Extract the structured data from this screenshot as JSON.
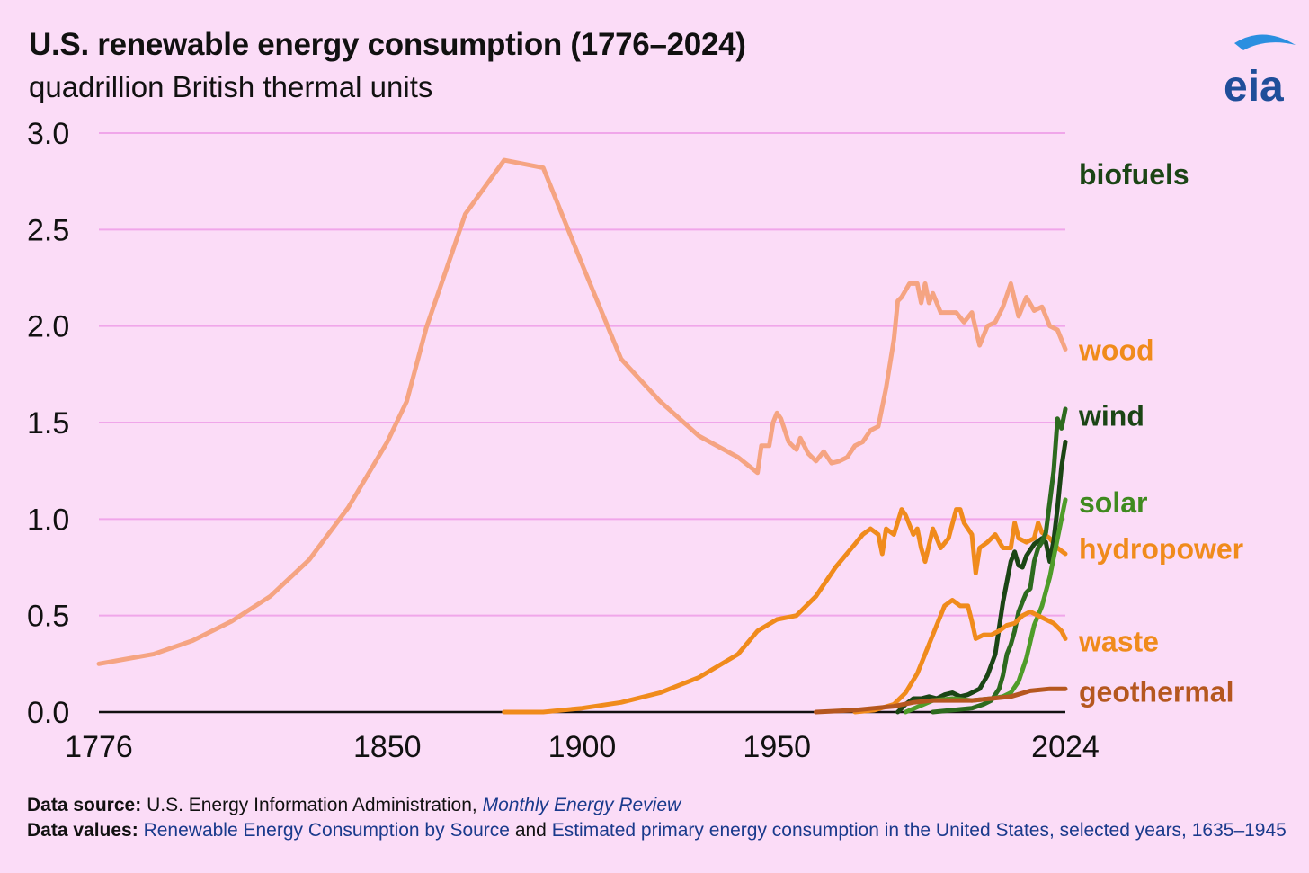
{
  "chart_data": {
    "type": "line",
    "title": "U.S. renewable energy consumption (1776–2024)",
    "subtitle": "quadrillion British thermal units",
    "ylim": [
      0,
      3.0
    ],
    "xlim": [
      1776,
      2024
    ],
    "yticks": [
      "0.0",
      "0.5",
      "1.0",
      "1.5",
      "2.0",
      "2.5",
      "3.0"
    ],
    "xticks": [
      {
        "value": 1776,
        "label": "1776"
      },
      {
        "value": 1850,
        "label": "1850"
      },
      {
        "value": 1900,
        "label": "1900"
      },
      {
        "value": 1950,
        "label": "1950"
      },
      {
        "value": 2024,
        "label": "2024"
      }
    ],
    "grid": "horizontal",
    "series": [
      {
        "name": "wood",
        "color": "#f5a482",
        "label_color": "#f08b1c",
        "points": [
          [
            1776,
            0.25
          ],
          [
            1790,
            0.3
          ],
          [
            1800,
            0.37
          ],
          [
            1810,
            0.47
          ],
          [
            1820,
            0.6
          ],
          [
            1830,
            0.79
          ],
          [
            1840,
            1.06
          ],
          [
            1850,
            1.4
          ],
          [
            1855,
            1.61
          ],
          [
            1860,
            1.99
          ],
          [
            1870,
            2.58
          ],
          [
            1880,
            2.86
          ],
          [
            1890,
            2.82
          ],
          [
            1900,
            2.32
          ],
          [
            1910,
            1.83
          ],
          [
            1920,
            1.61
          ],
          [
            1930,
            1.43
          ],
          [
            1940,
            1.32
          ],
          [
            1945,
            1.24
          ],
          [
            1946,
            1.38
          ],
          [
            1948,
            1.38
          ],
          [
            1949,
            1.5
          ],
          [
            1950,
            1.55
          ],
          [
            1951,
            1.52
          ],
          [
            1953,
            1.4
          ],
          [
            1955,
            1.36
          ],
          [
            1956,
            1.42
          ],
          [
            1958,
            1.34
          ],
          [
            1960,
            1.3
          ],
          [
            1962,
            1.35
          ],
          [
            1964,
            1.29
          ],
          [
            1966,
            1.3
          ],
          [
            1968,
            1.32
          ],
          [
            1970,
            1.38
          ],
          [
            1972,
            1.4
          ],
          [
            1974,
            1.46
          ],
          [
            1976,
            1.48
          ],
          [
            1978,
            1.68
          ],
          [
            1980,
            1.93
          ],
          [
            1981,
            2.13
          ],
          [
            1982,
            2.15
          ],
          [
            1984,
            2.22
          ],
          [
            1986,
            2.22
          ],
          [
            1987,
            2.12
          ],
          [
            1988,
            2.22
          ],
          [
            1989,
            2.12
          ],
          [
            1990,
            2.17
          ],
          [
            1992,
            2.07
          ],
          [
            1994,
            2.07
          ],
          [
            1996,
            2.07
          ],
          [
            1998,
            2.02
          ],
          [
            2000,
            2.07
          ],
          [
            2002,
            1.9
          ],
          [
            2004,
            2.0
          ],
          [
            2006,
            2.02
          ],
          [
            2008,
            2.1
          ],
          [
            2010,
            2.22
          ],
          [
            2012,
            2.05
          ],
          [
            2014,
            2.15
          ],
          [
            2016,
            2.08
          ],
          [
            2018,
            2.1
          ],
          [
            2020,
            2.0
          ],
          [
            2022,
            1.98
          ],
          [
            2024,
            1.88
          ]
        ]
      },
      {
        "name": "hydropower",
        "color": "#f08b1c",
        "label_color": "#f08b1c",
        "points": [
          [
            1880,
            0.0
          ],
          [
            1890,
            0.0
          ],
          [
            1900,
            0.02
          ],
          [
            1910,
            0.05
          ],
          [
            1920,
            0.1
          ],
          [
            1930,
            0.18
          ],
          [
            1940,
            0.3
          ],
          [
            1945,
            0.42
          ],
          [
            1950,
            0.48
          ],
          [
            1955,
            0.5
          ],
          [
            1960,
            0.6
          ],
          [
            1965,
            0.75
          ],
          [
            1970,
            0.87
          ],
          [
            1972,
            0.92
          ],
          [
            1974,
            0.95
          ],
          [
            1976,
            0.92
          ],
          [
            1977,
            0.82
          ],
          [
            1978,
            0.95
          ],
          [
            1980,
            0.92
          ],
          [
            1982,
            1.05
          ],
          [
            1983,
            1.02
          ],
          [
            1985,
            0.92
          ],
          [
            1986,
            0.95
          ],
          [
            1987,
            0.85
          ],
          [
            1988,
            0.78
          ],
          [
            1990,
            0.95
          ],
          [
            1992,
            0.85
          ],
          [
            1994,
            0.9
          ],
          [
            1996,
            1.05
          ],
          [
            1997,
            1.05
          ],
          [
            1998,
            0.98
          ],
          [
            2000,
            0.92
          ],
          [
            2001,
            0.72
          ],
          [
            2002,
            0.85
          ],
          [
            2004,
            0.88
          ],
          [
            2006,
            0.92
          ],
          [
            2008,
            0.85
          ],
          [
            2010,
            0.85
          ],
          [
            2011,
            0.98
          ],
          [
            2012,
            0.9
          ],
          [
            2014,
            0.88
          ],
          [
            2016,
            0.9
          ],
          [
            2017,
            0.98
          ],
          [
            2018,
            0.93
          ],
          [
            2020,
            0.9
          ],
          [
            2022,
            0.85
          ],
          [
            2024,
            0.82
          ]
        ]
      },
      {
        "name": "biofuels",
        "color": "#1b4515",
        "label_color": "#1b4515",
        "points": [
          [
            1981,
            0.0
          ],
          [
            1983,
            0.04
          ],
          [
            1985,
            0.07
          ],
          [
            1987,
            0.07
          ],
          [
            1989,
            0.08
          ],
          [
            1991,
            0.07
          ],
          [
            1993,
            0.09
          ],
          [
            1995,
            0.1
          ],
          [
            1997,
            0.08
          ],
          [
            1999,
            0.09
          ],
          [
            2000,
            0.1
          ],
          [
            2002,
            0.12
          ],
          [
            2004,
            0.19
          ],
          [
            2006,
            0.3
          ],
          [
            2008,
            0.57
          ],
          [
            2010,
            0.78
          ],
          [
            2011,
            0.83
          ],
          [
            2012,
            0.76
          ],
          [
            2013,
            0.75
          ],
          [
            2014,
            0.81
          ],
          [
            2016,
            0.87
          ],
          [
            2018,
            0.9
          ],
          [
            2019,
            0.88
          ],
          [
            2020,
            0.78
          ],
          [
            2021,
            0.89
          ],
          [
            2022,
            1.06
          ],
          [
            2023,
            1.27
          ],
          [
            2024,
            1.4
          ]
        ]
      },
      {
        "name": "wind",
        "color": "#2d6a1f",
        "label_color": "#1b4515",
        "points": [
          [
            1990,
            0.0
          ],
          [
            1995,
            0.01
          ],
          [
            2000,
            0.02
          ],
          [
            2003,
            0.04
          ],
          [
            2005,
            0.06
          ],
          [
            2007,
            0.12
          ],
          [
            2008,
            0.19
          ],
          [
            2009,
            0.3
          ],
          [
            2010,
            0.35
          ],
          [
            2011,
            0.42
          ],
          [
            2012,
            0.52
          ],
          [
            2013,
            0.57
          ],
          [
            2014,
            0.62
          ],
          [
            2015,
            0.64
          ],
          [
            2016,
            0.78
          ],
          [
            2017,
            0.85
          ],
          [
            2018,
            0.88
          ],
          [
            2019,
            0.93
          ],
          [
            2020,
            1.09
          ],
          [
            2021,
            1.25
          ],
          [
            2022,
            1.52
          ],
          [
            2023,
            1.47
          ],
          [
            2024,
            1.57
          ]
        ]
      },
      {
        "name": "solar",
        "color": "#4f9c2a",
        "label_color": "#3f8a1f",
        "points": [
          [
            1983,
            0.0
          ],
          [
            1990,
            0.06
          ],
          [
            1995,
            0.07
          ],
          [
            2000,
            0.06
          ],
          [
            2005,
            0.07
          ],
          [
            2008,
            0.08
          ],
          [
            2010,
            0.1
          ],
          [
            2012,
            0.16
          ],
          [
            2014,
            0.28
          ],
          [
            2016,
            0.45
          ],
          [
            2018,
            0.55
          ],
          [
            2020,
            0.7
          ],
          [
            2022,
            0.9
          ],
          [
            2024,
            1.1
          ]
        ]
      },
      {
        "name": "waste",
        "color": "#f08b1c",
        "label_color": "#f08b1c",
        "points": [
          [
            1970,
            0.0
          ],
          [
            1975,
            0.01
          ],
          [
            1980,
            0.04
          ],
          [
            1983,
            0.1
          ],
          [
            1986,
            0.2
          ],
          [
            1990,
            0.4
          ],
          [
            1993,
            0.55
          ],
          [
            1995,
            0.58
          ],
          [
            1997,
            0.55
          ],
          [
            1999,
            0.55
          ],
          [
            2000,
            0.47
          ],
          [
            2001,
            0.38
          ],
          [
            2003,
            0.4
          ],
          [
            2005,
            0.4
          ],
          [
            2007,
            0.42
          ],
          [
            2009,
            0.45
          ],
          [
            2011,
            0.46
          ],
          [
            2013,
            0.5
          ],
          [
            2015,
            0.52
          ],
          [
            2017,
            0.5
          ],
          [
            2019,
            0.48
          ],
          [
            2021,
            0.46
          ],
          [
            2023,
            0.42
          ],
          [
            2024,
            0.38
          ]
        ]
      },
      {
        "name": "geothermal",
        "color": "#b5571f",
        "label_color": "#b5571f",
        "points": [
          [
            1960,
            0.0
          ],
          [
            1970,
            0.01
          ],
          [
            1975,
            0.02
          ],
          [
            1980,
            0.03
          ],
          [
            1985,
            0.05
          ],
          [
            1990,
            0.06
          ],
          [
            1995,
            0.06
          ],
          [
            2000,
            0.06
          ],
          [
            2005,
            0.07
          ],
          [
            2010,
            0.08
          ],
          [
            2015,
            0.11
          ],
          [
            2020,
            0.12
          ],
          [
            2024,
            0.12
          ]
        ]
      }
    ]
  },
  "source": {
    "label": "Data source:",
    "text": "U.S. Energy Information Administration,",
    "publication": "Monthly Energy Review"
  },
  "values": {
    "label": "Data values:",
    "link1": "Renewable Energy Consumption by Source",
    "and": "and",
    "link2": "Estimated primary energy consumption in the United States, selected years, 1635–1945"
  },
  "logo": {
    "text": "eia",
    "color": "#1f4e9a",
    "arc_color": "#2b8fe0"
  }
}
